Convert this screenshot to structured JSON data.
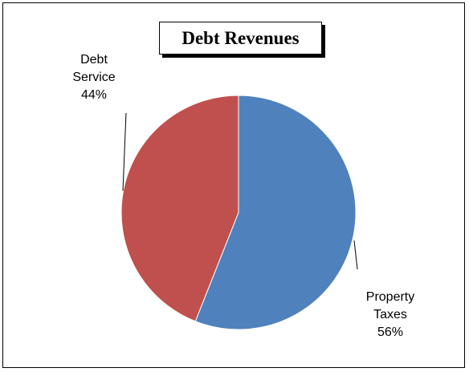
{
  "chart_data": {
    "type": "pie",
    "title": "Debt Revenues",
    "slices": [
      {
        "name": "Property Taxes",
        "label_lines": [
          "Property",
          "Taxes"
        ],
        "value": 56,
        "percent_label": "56%",
        "color": "#4f81bd"
      },
      {
        "name": "Debt Service",
        "label_lines": [
          "Debt",
          "Service"
        ],
        "value": 44,
        "percent_label": "44%",
        "color": "#c0504d"
      }
    ]
  }
}
